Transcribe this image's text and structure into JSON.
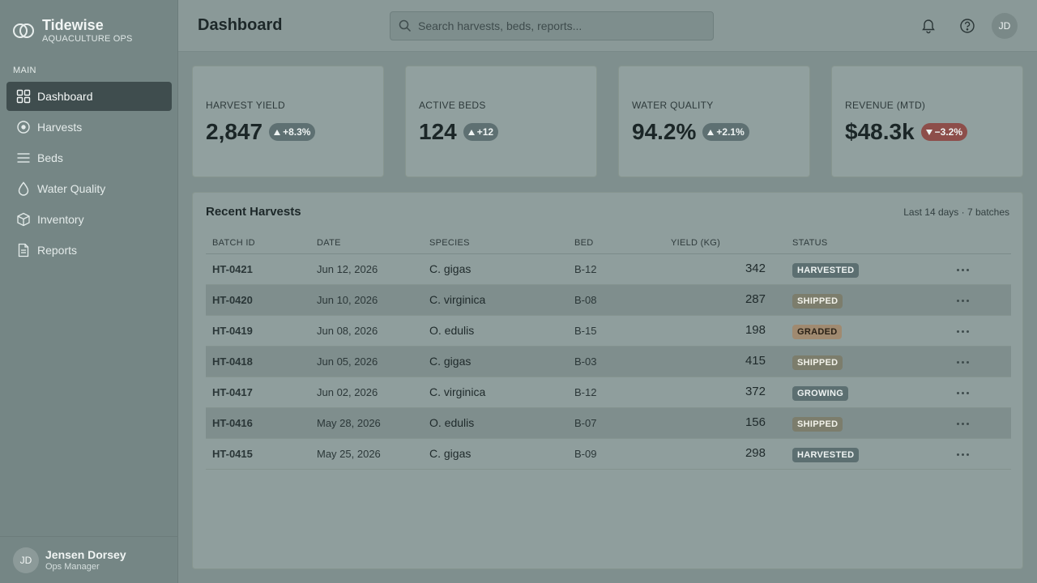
{
  "brand": {
    "name": "Tidewise",
    "subtitle": "AQUACULTURE OPS"
  },
  "sidebar": {
    "section_label": "MAIN",
    "items": [
      {
        "label": "Dashboard",
        "icon": "grid-icon",
        "active": true
      },
      {
        "label": "Harvests",
        "icon": "target-icon"
      },
      {
        "label": "Beds",
        "icon": "lines-icon"
      },
      {
        "label": "Water Quality",
        "icon": "droplet-icon"
      },
      {
        "label": "Inventory",
        "icon": "box-icon"
      },
      {
        "label": "Reports",
        "icon": "document-icon"
      }
    ],
    "user": {
      "initials": "JD",
      "name": "Jensen Dorsey",
      "role": "Ops Manager"
    }
  },
  "header": {
    "title": "Dashboard",
    "search_placeholder": "Search harvests, beds, reports...",
    "avatar_initials": "JD"
  },
  "stats": [
    {
      "label": "HARVEST YIELD",
      "value": "2,847",
      "delta": "+8.3%",
      "trend": "up"
    },
    {
      "label": "ACTIVE BEDS",
      "value": "124",
      "delta": "+12",
      "trend": "up"
    },
    {
      "label": "WATER QUALITY",
      "value": "94.2%",
      "delta": "+2.1%",
      "trend": "up"
    },
    {
      "label": "REVENUE (MTD)",
      "value": "$48.3k",
      "delta": "−3.2%",
      "trend": "down"
    }
  ],
  "harvests": {
    "title": "Recent Harvests",
    "meta": "Last 14 days · 7 batches",
    "columns": [
      "BATCH ID",
      "DATE",
      "SPECIES",
      "BED",
      "YIELD (KG)",
      "STATUS"
    ],
    "rows": [
      {
        "batch": "HT-0421",
        "date": "Jun 12, 2026",
        "species": "C. gigas",
        "bed": "B-12",
        "yield": "342",
        "status": "HARVESTED"
      },
      {
        "batch": "HT-0420",
        "date": "Jun 10, 2026",
        "species": "C. virginica",
        "bed": "B-08",
        "yield": "287",
        "status": "SHIPPED"
      },
      {
        "batch": "HT-0419",
        "date": "Jun 08, 2026",
        "species": "O. edulis",
        "bed": "B-15",
        "yield": "198",
        "status": "GRADED"
      },
      {
        "batch": "HT-0418",
        "date": "Jun 05, 2026",
        "species": "C. gigas",
        "bed": "B-03",
        "yield": "415",
        "status": "SHIPPED"
      },
      {
        "batch": "HT-0417",
        "date": "Jun 02, 2026",
        "species": "C. virginica",
        "bed": "B-12",
        "yield": "372",
        "status": "GROWING"
      },
      {
        "batch": "HT-0416",
        "date": "May 28, 2026",
        "species": "O. edulis",
        "bed": "B-07",
        "yield": "156",
        "status": "SHIPPED"
      },
      {
        "batch": "HT-0415",
        "date": "May 25, 2026",
        "species": "C. gigas",
        "bed": "B-09",
        "yield": "298",
        "status": "HARVESTED"
      }
    ],
    "status_colors": {
      "HARVESTED": {
        "bg": "#5c6f71",
        "fg": "#eef3f2"
      },
      "SHIPPED": {
        "bg": "#7c7d6c",
        "fg": "#f2f2ea"
      },
      "GRADED": {
        "bg": "#a08a70",
        "fg": "#2a2116"
      },
      "GROWING": {
        "bg": "#5c6f71",
        "fg": "#eef3f2"
      }
    }
  }
}
